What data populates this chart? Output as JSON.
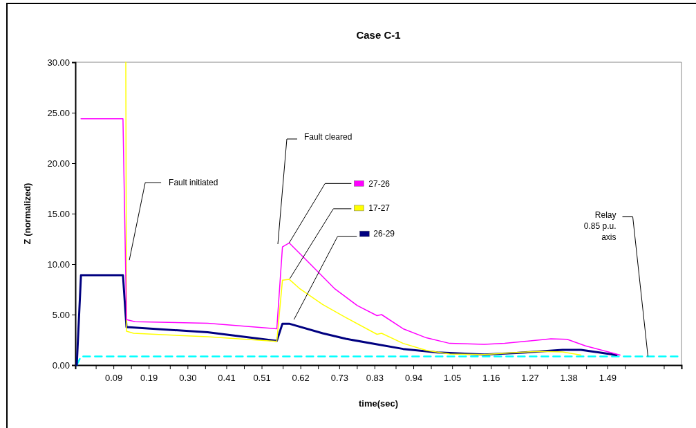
{
  "chart_data": {
    "type": "line",
    "title": "Case C-1",
    "xlabel": "time(sec)",
    "ylabel": "Z (normalized)",
    "legend": "top",
    "xlim": [
      -0.018,
      1.7
    ],
    "ylim": [
      0,
      30
    ],
    "xticks": [
      {
        "value": 0.04,
        "label": null
      },
      0.09,
      {
        "value": 0.14,
        "label": null
      },
      0.19,
      {
        "value": 0.25,
        "label": null
      },
      {
        "value": 0.3,
        "label": "0.30"
      },
      {
        "value": 0.35,
        "label": null
      },
      0.41,
      {
        "value": 0.46,
        "label": null
      },
      0.51,
      {
        "value": 0.57,
        "label": null
      },
      0.62,
      {
        "value": 0.67,
        "label": null
      },
      0.73,
      {
        "value": 0.78,
        "label": null
      },
      0.83,
      {
        "value": 0.89,
        "label": null
      },
      0.94,
      {
        "value": 0.99,
        "label": null
      },
      1.05,
      {
        "value": 1.1,
        "label": null
      },
      1.16,
      {
        "value": 1.21,
        "label": null
      },
      1.27,
      {
        "value": 1.32,
        "label": null
      },
      1.38,
      {
        "value": 1.43,
        "label": null
      },
      1.49,
      {
        "value": 1.54,
        "label": null
      },
      {
        "value": 1.65,
        "label": null
      }
    ],
    "yticks": [
      {
        "value": 0,
        "label": "0.00"
      },
      {
        "value": 5,
        "label": "5.00"
      },
      {
        "value": 10,
        "label": "10.00"
      },
      {
        "value": 15,
        "label": "15.00"
      },
      {
        "value": 20,
        "label": "20.00"
      },
      {
        "value": 25,
        "label": "25.00"
      },
      {
        "value": 30,
        "label": "30.00"
      }
    ],
    "series": [
      {
        "name": "27-26",
        "color": "#ff00ff",
        "x": [
          -0.002,
          0.117,
          0.127,
          0.151,
          0.357,
          0.553,
          0.569,
          0.588,
          0.611,
          0.651,
          0.716,
          0.781,
          0.837,
          0.85,
          0.911,
          0.977,
          1.043,
          1.141,
          1.199,
          1.33,
          1.376,
          1.428,
          1.526
        ],
        "values": [
          24.4,
          24.4,
          4.5,
          4.3,
          4.15,
          3.6,
          11.7,
          12.1,
          11.3,
          9.9,
          7.6,
          5.9,
          4.9,
          5.0,
          3.6,
          2.7,
          2.15,
          2.05,
          2.15,
          2.6,
          2.55,
          1.9,
          1.0
        ]
      },
      {
        "name": "17-27",
        "color": "#ffff00",
        "x": [
          0.125,
          0.127,
          0.147,
          0.357,
          0.553,
          0.569,
          0.588,
          0.617,
          0.683,
          0.749,
          0.837,
          0.85,
          0.911,
          0.977,
          1.043,
          1.141,
          1.232,
          1.297,
          1.363,
          1.415
        ],
        "values": [
          30,
          3.35,
          3.15,
          2.8,
          2.35,
          8.4,
          8.5,
          7.6,
          6.0,
          4.7,
          3.05,
          3.15,
          2.15,
          1.45,
          1.1,
          1.05,
          1.25,
          1.35,
          1.3,
          1.0
        ]
      },
      {
        "name": "26-29",
        "color": "#000080",
        "x": [
          -0.014,
          -0.002,
          0.117,
          0.127,
          0.134,
          0.357,
          0.553,
          0.569,
          0.588,
          0.683,
          0.749,
          0.837,
          0.911,
          1.009,
          1.141,
          1.232,
          1.363,
          1.415,
          1.467,
          1.516
        ],
        "values": [
          0,
          8.9,
          8.9,
          3.75,
          3.75,
          3.25,
          2.4,
          4.1,
          4.1,
          3.15,
          2.6,
          2.05,
          1.6,
          1.25,
          1.05,
          1.2,
          1.5,
          1.5,
          1.25,
          1.0
        ]
      },
      {
        "color": "#00ffff",
        "line_style": "dashed",
        "x": [
          -0.014,
          -0.002,
          1.693
        ],
        "values": [
          0,
          0.85,
          0.85
        ]
      }
    ],
    "annotations": [
      {
        "text": "Fault initiated",
        "x": 0.135,
        "y": 10.4
      },
      "Fault cleared",
      {
        "text": "Relay\n0.85 p.u.\naxis",
        "x": 1.605,
        "y": 0.85
      }
    ]
  }
}
